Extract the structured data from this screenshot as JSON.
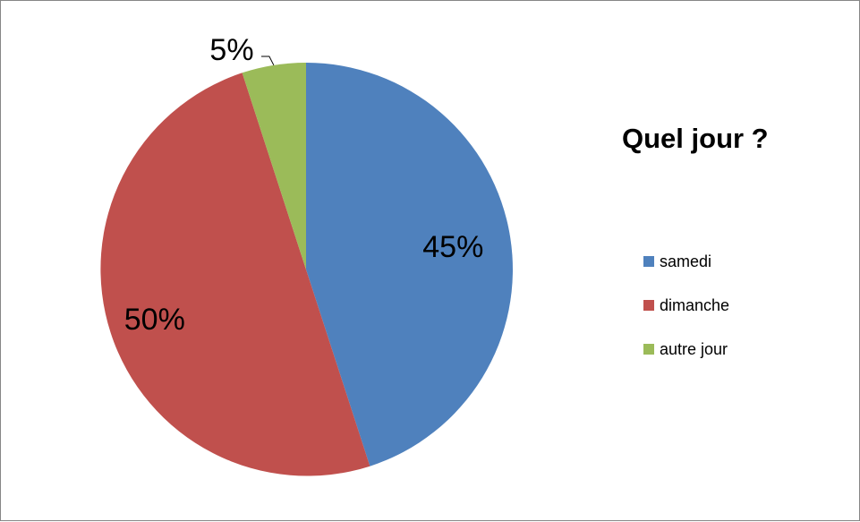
{
  "chart_data": {
    "type": "pie",
    "title": "Quel jour ?",
    "categories": [
      "samedi",
      "dimanche",
      "autre jour"
    ],
    "values": [
      45,
      50,
      5
    ],
    "data_labels": [
      "45%",
      "50%",
      "5%"
    ],
    "colors": [
      "#4F81BD",
      "#C0504D",
      "#9BBB59"
    ],
    "legend_position": "right"
  }
}
